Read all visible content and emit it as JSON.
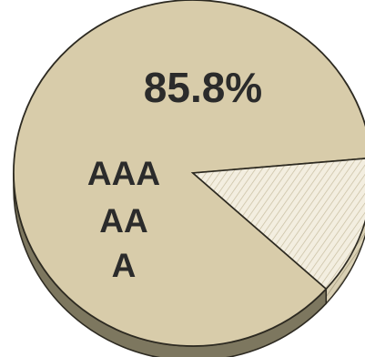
{
  "chart_data": {
    "type": "pie",
    "slices": [
      {
        "value_label": "85.8%",
        "value": 85.8,
        "label_lines": [
          "AAA",
          "AA",
          "A"
        ],
        "color": "#d8ccaa",
        "side_color": "#7d775f"
      },
      {
        "value_label": "",
        "value": 14.2,
        "label_lines": [],
        "color": "#f1ebd8",
        "side_color": "#b7ae90",
        "pattern": "diagonal-hatch"
      }
    ],
    "three_d": true,
    "legend": "none",
    "title": ""
  }
}
